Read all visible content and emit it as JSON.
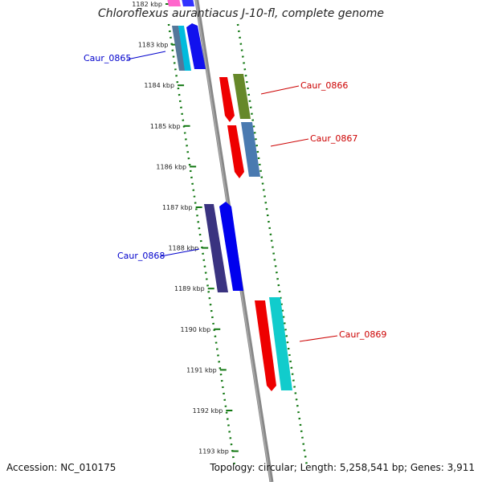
{
  "title": "Chloroflexus aurantiacus J-10-fl, complete genome",
  "accession": "Accession: NC_010175",
  "topology": "Topology: circular; Length: 5,258,541 bp; Genes: 3,911",
  "ticks": [
    "1182 kbp",
    "1183 kbp",
    "1184 kbp",
    "1185 kbp",
    "1186 kbp",
    "1187 kbp",
    "1188 kbp",
    "1189 kbp",
    "1190 kbp",
    "1191 kbp",
    "1192 kbp",
    "1193 kbp"
  ],
  "gene_labels": [
    {
      "text": "Caur_0865",
      "strand": "minus"
    },
    {
      "text": "Caur_0866",
      "strand": "plus"
    },
    {
      "text": "Caur_0867",
      "strand": "plus"
    },
    {
      "text": "Caur_0868",
      "strand": "minus"
    },
    {
      "text": "Caur_0869",
      "strand": "plus"
    }
  ],
  "colors": {
    "minus_label": "#0000cc",
    "plus_label": "#cc0000",
    "backbone": "#888888",
    "dotted_track": "#007700"
  }
}
